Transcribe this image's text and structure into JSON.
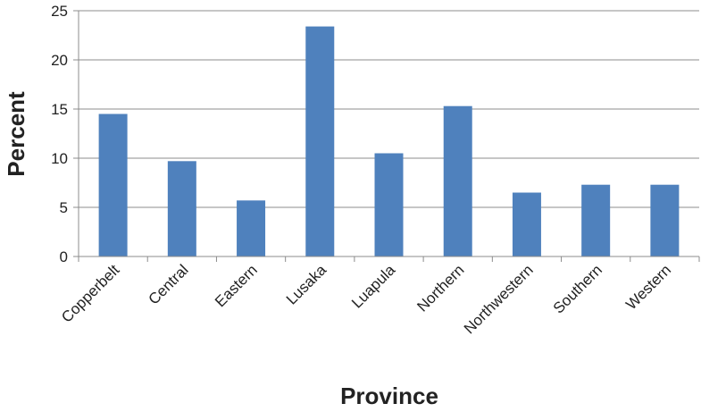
{
  "chart_data": {
    "type": "bar",
    "categories": [
      "Copperbelt",
      "Central",
      "Eastern",
      "Lusaka",
      "Luapula",
      "Northern",
      "Northwestern",
      "Southern",
      "Western"
    ],
    "values": [
      14.5,
      9.7,
      5.7,
      23.4,
      10.5,
      15.3,
      6.5,
      7.3,
      7.3
    ],
    "xlabel": "Province",
    "ylabel": "Percent",
    "ylim": [
      0,
      25
    ],
    "yticks": [
      0,
      5,
      10,
      15,
      20,
      25
    ],
    "grid": true,
    "legend": "none",
    "colors": {
      "bar": "#4f81bd",
      "grid": "#8c8c8c",
      "axis": "#8c8c8c",
      "text": "#222222"
    }
  }
}
